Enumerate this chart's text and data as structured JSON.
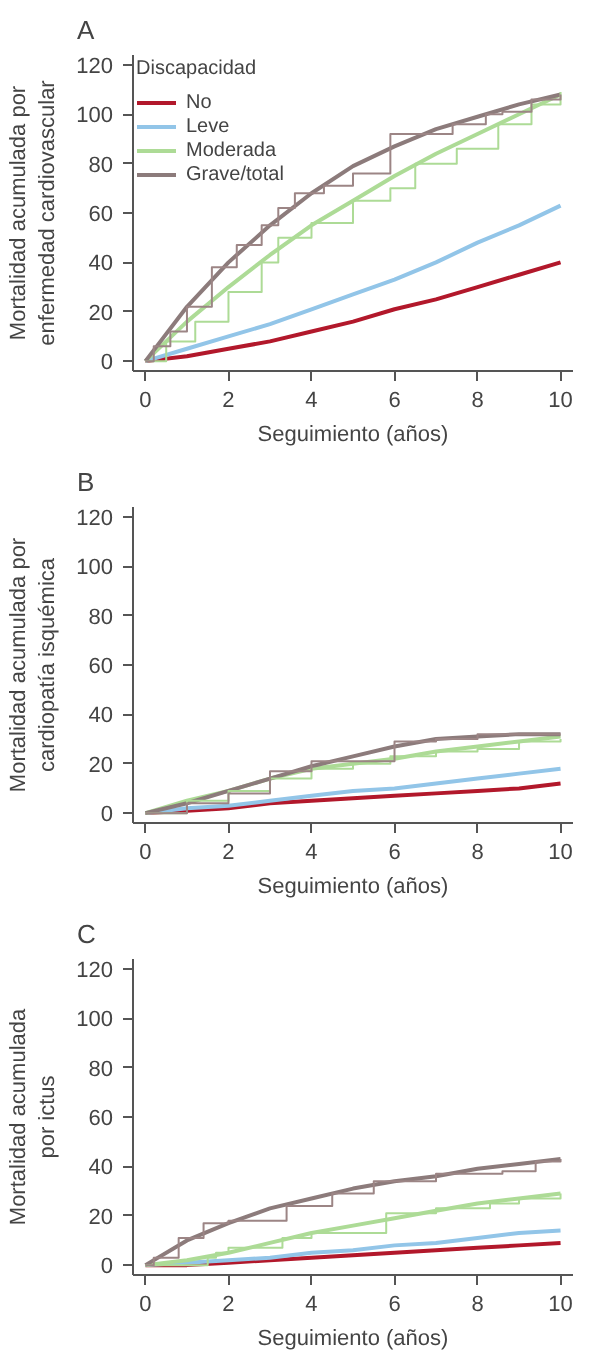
{
  "chart_data": [
    {
      "type": "line",
      "title": "A",
      "xlabel": "Seguimiento (años)",
      "ylabel": "Mortalidad acumulada por\nenfermedad cardiovascular",
      "legend_title": "Discapacidad",
      "legend": "top left",
      "grid": false,
      "xlim": [
        -0.3,
        10.3
      ],
      "ylim": [
        -4,
        124
      ],
      "xticks": [
        0,
        2,
        4,
        6,
        8,
        10
      ],
      "yticks": [
        0,
        20,
        40,
        60,
        80,
        100,
        120
      ],
      "x": [
        0,
        1,
        2,
        3,
        4,
        5,
        6,
        7,
        8,
        9,
        10
      ],
      "series": [
        {
          "name": "No",
          "color": "#b2182b",
          "values": [
            0,
            2,
            5,
            8,
            12,
            16,
            21,
            25,
            30,
            35,
            40
          ]
        },
        {
          "name": "Leve",
          "color": "#92c5e8",
          "values": [
            0,
            5,
            10,
            15,
            21,
            27,
            33,
            40,
            48,
            55,
            63
          ]
        },
        {
          "name": "Moderada",
          "color": "#addb96",
          "values": [
            0,
            16,
            30,
            43,
            55,
            65,
            75,
            84,
            92,
            100,
            108
          ]
        },
        {
          "name": "Grave/total",
          "color": "#8c7b7b",
          "values": [
            0,
            22,
            40,
            55,
            68,
            79,
            87,
            94,
            99,
            104,
            108
          ]
        },
        {
          "type": "step",
          "color": "#addb96",
          "x": [
            0,
            0.5,
            1.2,
            2,
            2.8,
            3.2,
            4,
            5,
            5.9,
            6.5,
            7.5,
            8.5,
            9.3,
            10
          ],
          "values": [
            0,
            8,
            16,
            28,
            40,
            50,
            56,
            65,
            70,
            80,
            86,
            96,
            104,
            109
          ]
        },
        {
          "type": "step",
          "color": "#9c8585",
          "x": [
            0,
            0.2,
            0.6,
            1.0,
            1.6,
            2.2,
            2.8,
            3.2,
            3.6,
            4.3,
            5.0,
            5.9,
            6.6,
            7.4,
            8.2,
            8.6,
            9.3,
            10
          ],
          "values": [
            0,
            6,
            12,
            22,
            38,
            47,
            55,
            62,
            68,
            71,
            76,
            92,
            92,
            96,
            100,
            101,
            106,
            108
          ]
        }
      ]
    },
    {
      "type": "line",
      "title": "B",
      "xlabel": "Seguimiento (años)",
      "ylabel": "Mortalidad acumulada por\ncardiopatía isquémica",
      "legend": false,
      "grid": false,
      "xlim": [
        -0.3,
        10.3
      ],
      "ylim": [
        -4,
        124
      ],
      "xticks": [
        0,
        2,
        4,
        6,
        8,
        10
      ],
      "yticks": [
        0,
        20,
        40,
        60,
        80,
        100,
        120
      ],
      "x": [
        0,
        1,
        2,
        3,
        4,
        5,
        6,
        7,
        8,
        9,
        10
      ],
      "series": [
        {
          "color": "#b2182b",
          "values": [
            0,
            1,
            2,
            4,
            5,
            6,
            7,
            8,
            9,
            10,
            12
          ]
        },
        {
          "color": "#92c5e8",
          "values": [
            0,
            2,
            3,
            5,
            7,
            9,
            10,
            12,
            14,
            16,
            18
          ]
        },
        {
          "color": "#addb96",
          "values": [
            0,
            5,
            9,
            14,
            18,
            20,
            22,
            25,
            27,
            29,
            31
          ]
        },
        {
          "color": "#8c7b7b",
          "values": [
            0,
            4,
            9,
            14,
            19,
            23,
            27,
            30,
            31,
            32,
            32
          ]
        },
        {
          "type": "step",
          "color": "#addb96",
          "x": [
            0,
            1,
            2,
            3,
            4,
            5,
            5.9,
            7,
            8,
            9,
            10
          ],
          "values": [
            0,
            5,
            9,
            14,
            18,
            20,
            23,
            25,
            26,
            29,
            30
          ]
        },
        {
          "type": "step",
          "color": "#9c8585",
          "x": [
            0,
            1,
            2,
            3,
            4,
            6,
            7,
            8,
            10
          ],
          "values": [
            0,
            4,
            8,
            17,
            21,
            29,
            30,
            32,
            32
          ]
        }
      ]
    },
    {
      "type": "line",
      "title": "C",
      "xlabel": "Seguimiento (años)",
      "ylabel": "Mortalidad acumulada\npor ictus",
      "legend": false,
      "grid": false,
      "xlim": [
        -0.3,
        10.3
      ],
      "ylim": [
        -4,
        124
      ],
      "xticks": [
        0,
        2,
        4,
        6,
        8,
        10
      ],
      "yticks": [
        0,
        20,
        40,
        60,
        80,
        100,
        120
      ],
      "x": [
        0,
        1,
        2,
        3,
        4,
        5,
        6,
        7,
        8,
        9,
        10
      ],
      "series": [
        {
          "color": "#b2182b",
          "values": [
            0,
            0,
            1,
            2,
            3,
            4,
            5,
            6,
            7,
            8,
            9
          ]
        },
        {
          "color": "#92c5e8",
          "values": [
            0,
            1,
            2,
            3,
            5,
            6,
            8,
            9,
            11,
            13,
            14
          ]
        },
        {
          "color": "#addb96",
          "values": [
            0,
            2,
            5,
            9,
            13,
            16,
            19,
            22,
            25,
            27,
            29
          ]
        },
        {
          "color": "#8c7b7b",
          "values": [
            0,
            10,
            17,
            23,
            27,
            31,
            34,
            36,
            39,
            41,
            43
          ]
        },
        {
          "type": "step",
          "color": "#addb96",
          "x": [
            0,
            1.5,
            1.7,
            2,
            3.3,
            4,
            5.8,
            7,
            8.3,
            9,
            10
          ],
          "values": [
            0,
            3,
            5,
            7,
            11,
            13,
            21,
            23,
            25,
            27,
            29
          ]
        },
        {
          "type": "step",
          "color": "#9c8585",
          "x": [
            0,
            0.2,
            0.8,
            1.4,
            2,
            3.4,
            4.5,
            5.5,
            6,
            7,
            7.6,
            8.6,
            9.4,
            10
          ],
          "values": [
            0,
            3,
            11,
            17,
            18,
            24,
            29,
            34,
            34,
            37,
            37,
            38,
            42,
            43
          ]
        }
      ]
    }
  ]
}
